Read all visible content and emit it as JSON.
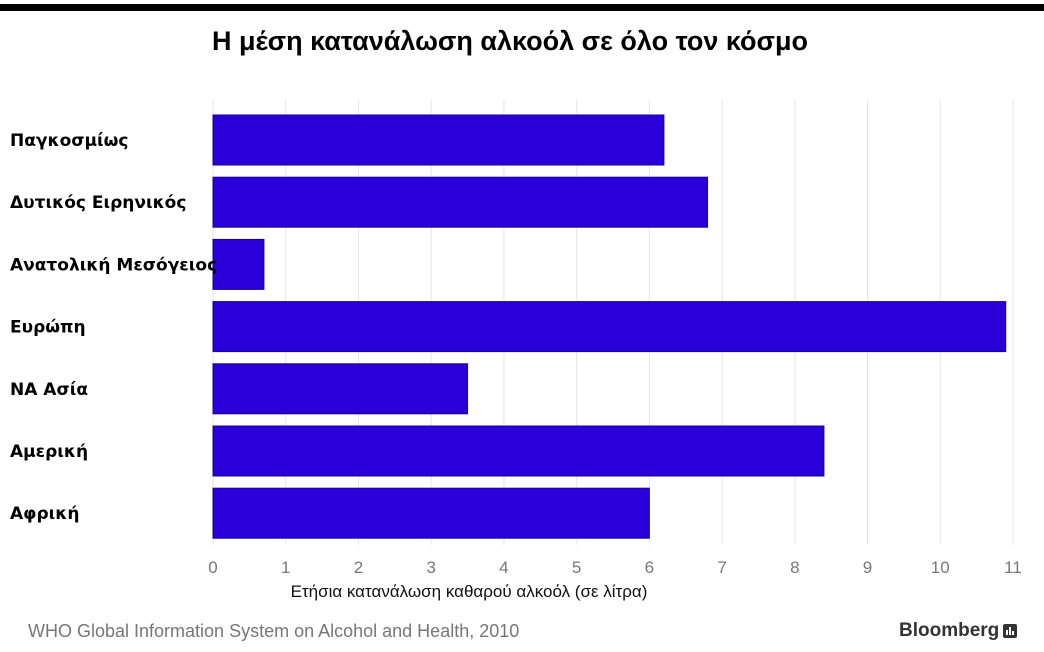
{
  "title": "Η μέση κατανάλωση αλκοόλ σε όλο τον κόσμο",
  "source": "WHO Global Information System on Alcohol and Health, 2010",
  "brand": "Bloomberg",
  "colors": {
    "bar": "#2a00d9",
    "grid": "#e6e6e6",
    "tick_text": "#777777"
  },
  "chart_data": {
    "type": "bar",
    "orientation": "horizontal",
    "categories": [
      "Παγκοσμίως",
      "Δυτικός Ειρηνικός",
      "Ανατολική Μεσόγειος",
      "Ευρώπη",
      "ΝΑ Ασία",
      "Αμερική",
      "Αφρική"
    ],
    "values": [
      6.2,
      6.8,
      0.7,
      10.9,
      3.5,
      8.4,
      6.0
    ],
    "xlabel": "Ετήσια κατανάλωση καθαρού αλκοόλ (σε λίτρα)",
    "ylabel": "",
    "xlim": [
      0,
      11
    ],
    "xticks": [
      "0",
      "1",
      "2",
      "3",
      "4",
      "5",
      "6",
      "7",
      "8",
      "9",
      "10",
      "11"
    ],
    "grid": true,
    "legend": "none"
  }
}
